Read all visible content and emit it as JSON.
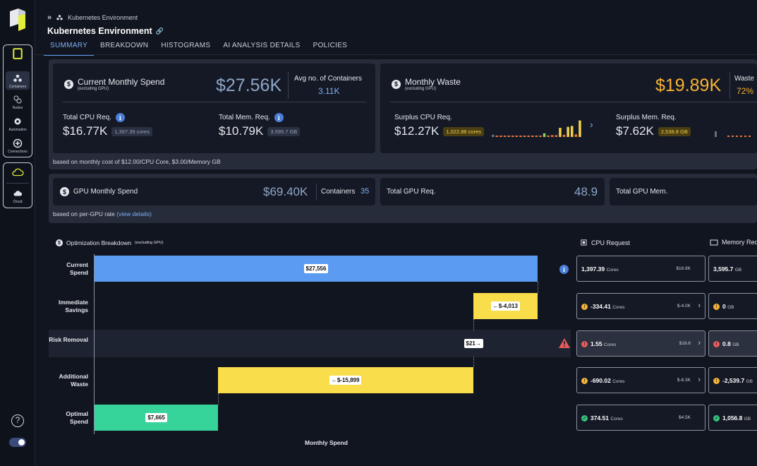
{
  "breadcrumb": {
    "label": "Kubernetes Environment"
  },
  "page_title": "Kubernetes Environment",
  "tabs": [
    "SUMMARY",
    "BREAKDOWN",
    "HISTOGRAMS",
    "AI ANALYSIS DETAILS",
    "POLICIES"
  ],
  "sidebar": {
    "items": [
      {
        "label": "Containers",
        "icon": "containers-icon",
        "active": true
      },
      {
        "label": "Nodes",
        "icon": "nodes-icon"
      },
      {
        "label": "Automation",
        "icon": "gear-icon"
      },
      {
        "label": "Connections",
        "icon": "plus-circle-icon"
      },
      {
        "label": "",
        "icon": "cloud-icon"
      },
      {
        "label": "Cloud",
        "icon": "cloud-upload-icon"
      }
    ]
  },
  "spend": {
    "title": "Current Monthly Spend",
    "subtitle": "(excluding GPU)",
    "value": "$27.56K",
    "avg_label": "Avg no. of Containers",
    "avg_value": "3.11K",
    "cpu_label": "Total CPU Req.",
    "cpu_value": "$16.77K",
    "cpu_pill": "1,397.39 cores",
    "mem_label": "Total Mem. Req.",
    "mem_value": "$10.79K",
    "mem_pill": "3,595.7 GB",
    "note": "based on monthly cost of $12.00/CPU Core, $3.00/Memory GB"
  },
  "waste": {
    "title": "Monthly Waste",
    "subtitle": "(excluding GPU)",
    "value": "$19.89K",
    "pct_label": "Waste",
    "pct_value": "72%",
    "cpu_label": "Surplus CPU Req.",
    "cpu_value": "$12.27K",
    "cpu_pill": "1,022.88 cores",
    "mem_label": "Surplus Mem. Req.",
    "mem_value": "$7.62K",
    "mem_pill": "2,538.8 GB",
    "sparkline": [
      0.12,
      0,
      0,
      0,
      0,
      0,
      0.04,
      0.04,
      0.04,
      0.06,
      0.05,
      0.06,
      0.05,
      0.2,
      0.08,
      0.1,
      0.1,
      0.5,
      0.12,
      0.55,
      0.6,
      0.15,
      0.9
    ]
  },
  "gpu": {
    "title": "GPU Monthly Spend",
    "value": "$69.40K",
    "containers_label": "Containers",
    "containers_value": "35",
    "note": "based on per-GPU rate",
    "link": "(view details)",
    "req_label": "Total GPU Req.",
    "req_value": "48.9",
    "mem_label": "Total GPU Mem."
  },
  "breakdown": {
    "title": "Optimization Breakdown",
    "subtitle": "(excluding GPU)",
    "xlabel": "Monthly Spend",
    "cpu_header": "CPU Request",
    "mem_header": "Memory Req",
    "rows": [
      {
        "label": "Current Spend",
        "bar_label": "$27,556",
        "start": 0,
        "end": 27556,
        "color": "#5b9cf2",
        "cpu": {
          "value": "1,397.39",
          "unit": "Cores",
          "cost": "$16.8K"
        },
        "mem": {
          "value": "3,595.7",
          "unit": "GB"
        }
      },
      {
        "label": "Immediate Savings",
        "bar_label": "←$-4,013",
        "start": 23543,
        "end": 27556,
        "color": "#f9dd4a",
        "cpu": {
          "value": "-334.41",
          "unit": "Cores",
          "cost": "$-4.0K"
        },
        "mem": {
          "value": "0",
          "unit": "GB"
        }
      },
      {
        "label": "Risk Removal",
        "bar_label": "$21→",
        "start": 23543,
        "end": 23564,
        "color": "#f9dd4a",
        "cpu": {
          "value": "1.55",
          "unit": "Cores",
          "cost": "$18.6"
        },
        "mem": {
          "value": "0.8",
          "unit": "GB"
        }
      },
      {
        "label": "Additional Waste",
        "bar_label": "←$-15,899",
        "start": 7665,
        "end": 23564,
        "color": "#f9dd4a",
        "cpu": {
          "value": "-690.02",
          "unit": "Cores",
          "cost": "$-8.3K"
        },
        "mem": {
          "value": "-2,539.7",
          "unit": "GB"
        }
      },
      {
        "label": "Optimal Spend",
        "bar_label": "$7,665",
        "start": 0,
        "end": 7665,
        "color": "#36d39a",
        "cpu": {
          "value": "374.51",
          "unit": "Cores",
          "cost": "$4.5K"
        },
        "mem": {
          "value": "1,056.8",
          "unit": "GB"
        }
      }
    ]
  }
}
